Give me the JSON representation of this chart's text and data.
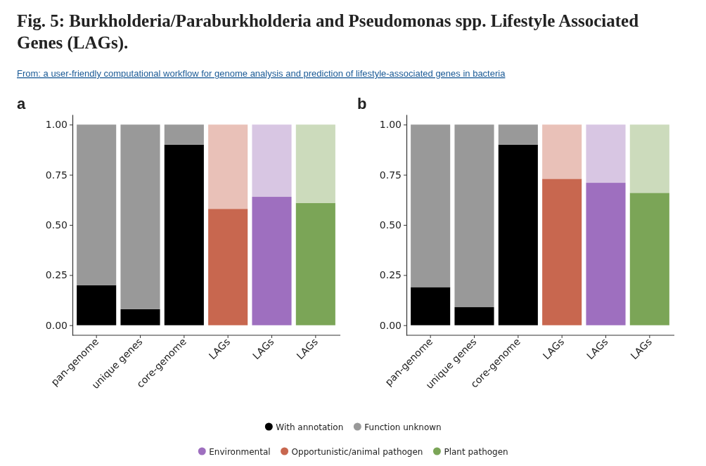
{
  "chart_data": [
    {
      "type": "bar",
      "title": "a",
      "annotations": [
        "Fig. 5: Burkholderia/Paraburkholderia and Pseudomonas spp. Lifestyle Associated Genes (LAGs).",
        "From: a user-friendly computational workflow for genome analysis and prediction of lifestyle-associated genes in bacteria"
      ],
      "categories": [
        "pan-genome",
        "unique genes",
        "core-genome",
        "LAGs",
        "LAGs",
        "LAGs"
      ],
      "stacked": true,
      "grid": false,
      "ylim": [
        -0.05,
        1.05
      ],
      "yticks": [
        {
          "value": 0,
          "label": "0.00"
        },
        {
          "value": 0.25,
          "label": "0.25"
        },
        {
          "value": 0.5,
          "label": "0.50"
        },
        {
          "value": 0.75,
          "label": "0.75"
        },
        {
          "value": 1,
          "label": "1.00"
        }
      ],
      "series": [
        {
          "color": "#000000",
          "values": [
            0.2,
            0.08,
            0.9,
            null,
            null,
            null
          ]
        },
        {
          "color": "#9e6fbf",
          "values": [
            null,
            null,
            null,
            null,
            0.64,
            null
          ]
        },
        {
          "color": "#c8674f",
          "values": [
            null,
            null,
            null,
            0.58,
            null,
            null
          ]
        },
        {
          "color": "#7ba557",
          "values": [
            null,
            null,
            null,
            null,
            null,
            0.61
          ]
        },
        {
          "colors": [
            "#999999",
            "#999999",
            "#999999",
            "#e9c1b8",
            "#d8c6e3",
            "#ccdbbc"
          ],
          "values": [
            0.8,
            0.92,
            0.1,
            0.42,
            0.36,
            0.39
          ]
        }
      ]
    },
    {
      "type": "bar",
      "title": "b",
      "legend": "bottom",
      "categories": [
        "pan-genome",
        "unique genes",
        "core-genome",
        "LAGs",
        "LAGs",
        "LAGs"
      ],
      "stacked": true,
      "grid": false,
      "ylim": [
        -0.05,
        1.05
      ],
      "yticks": [
        {
          "value": 0,
          "label": "0.00"
        },
        {
          "value": 0.25,
          "label": "0.25"
        },
        {
          "value": 0.5,
          "label": "0.50"
        },
        {
          "value": 0.75,
          "label": "0.75"
        },
        {
          "value": 1,
          "label": "1.00"
        }
      ],
      "series": [
        {
          "name": "With annotation",
          "color": "#000000",
          "values": [
            0.19,
            0.09,
            0.9,
            null,
            null,
            null
          ]
        },
        {
          "name": "Environmental",
          "color": "#9e6fbf",
          "values": [
            null,
            null,
            null,
            null,
            0.71,
            null
          ]
        },
        {
          "name": "Opportunistic/animal pathogen",
          "color": "#c8674f",
          "values": [
            null,
            null,
            null,
            0.73,
            null,
            null
          ]
        },
        {
          "name": "Plant pathogen",
          "color": "#7ba557",
          "values": [
            null,
            null,
            null,
            null,
            null,
            0.66
          ]
        },
        {
          "name": "Function unknown",
          "color": "#999999",
          "colors": [
            "#999999",
            "#999999",
            "#999999",
            "#e9c1b8",
            "#d8c6e3",
            "#ccdbbc"
          ],
          "values": [
            0.81,
            0.91,
            0.1,
            0.27,
            0.29,
            0.34
          ]
        }
      ]
    }
  ]
}
